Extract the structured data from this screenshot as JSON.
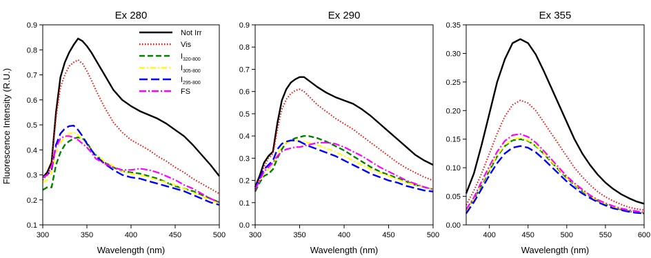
{
  "figure": {
    "ylabel": "Fluorescence Intensity (R.U.)",
    "legend": {
      "placement": "top-right of first panel",
      "entries": [
        {
          "main": "Not Irr",
          "sub": ""
        },
        {
          "main": "Vis",
          "sub": ""
        },
        {
          "main": "I",
          "sub": "320-800"
        },
        {
          "main": "I",
          "sub": "305-800"
        },
        {
          "main": "I",
          "sub": "295-800"
        },
        {
          "main": "FS",
          "sub": ""
        }
      ]
    },
    "series_styles": [
      {
        "color": "#000000",
        "dash": "",
        "width": 2.4
      },
      {
        "color": "#ff0000",
        "dash": "1.5 2.5",
        "width": 2
      },
      {
        "color": "#008000",
        "dash": "8 4",
        "width": 2.4
      },
      {
        "color": "#ffff00",
        "dash": "8 3 2 3",
        "width": 2
      },
      {
        "color": "#0000ff",
        "dash": "12 5",
        "width": 2.4
      },
      {
        "color": "#ff00ff",
        "dash": "10 3 2 3",
        "width": 2.2
      }
    ]
  },
  "chart_data": [
    {
      "type": "line",
      "title": "Ex 280",
      "xlabel": "Wavelength (nm)",
      "ylabel": "Fluorescence Intensity (R.U.)",
      "xlim": [
        300,
        500
      ],
      "ylim": [
        0.1,
        0.9
      ],
      "xticks": [
        "300",
        "350",
        "400",
        "450",
        "500"
      ],
      "yticks": [
        "0.1",
        "0.2",
        "0.3",
        "0.4",
        "0.5",
        "0.6",
        "0.7",
        "0.8",
        "0.9"
      ],
      "grid": false,
      "legend": "top-right",
      "x": [
        300,
        305,
        310,
        315,
        320,
        325,
        330,
        335,
        340,
        345,
        350,
        355,
        360,
        370,
        380,
        390,
        400,
        410,
        420,
        430,
        440,
        450,
        460,
        470,
        480,
        490,
        500
      ],
      "series": [
        {
          "name": "Not Irr",
          "values": [
            0.29,
            0.31,
            0.35,
            0.55,
            0.69,
            0.75,
            0.79,
            0.82,
            0.845,
            0.835,
            0.815,
            0.79,
            0.76,
            0.7,
            0.64,
            0.6,
            0.575,
            0.555,
            0.54,
            0.525,
            0.505,
            0.48,
            0.455,
            0.42,
            0.38,
            0.34,
            0.295
          ]
        },
        {
          "name": "Vis",
          "values": [
            0.28,
            0.3,
            0.34,
            0.53,
            0.65,
            0.7,
            0.735,
            0.75,
            0.76,
            0.745,
            0.715,
            0.68,
            0.64,
            0.57,
            0.51,
            0.47,
            0.44,
            0.42,
            0.4,
            0.375,
            0.355,
            0.33,
            0.31,
            0.285,
            0.265,
            0.245,
            0.225
          ]
        },
        {
          "name": "I320-800",
          "values": [
            0.24,
            0.25,
            0.25,
            0.34,
            0.39,
            0.42,
            0.435,
            0.445,
            0.45,
            0.445,
            0.43,
            0.4,
            0.38,
            0.35,
            0.33,
            0.315,
            0.31,
            0.305,
            0.295,
            0.285,
            0.27,
            0.255,
            0.245,
            0.235,
            0.22,
            0.205,
            0.19
          ]
        },
        {
          "name": "I305-800",
          "values": [
            0.27,
            0.28,
            0.31,
            0.39,
            0.43,
            0.45,
            0.465,
            0.47,
            0.46,
            0.44,
            0.42,
            0.4,
            0.38,
            0.355,
            0.335,
            0.315,
            0.305,
            0.3,
            0.29,
            0.28,
            0.27,
            0.26,
            0.245,
            0.23,
            0.215,
            0.2,
            0.185
          ]
        },
        {
          "name": "I295-800",
          "values": [
            0.29,
            0.3,
            0.32,
            0.42,
            0.465,
            0.485,
            0.495,
            0.497,
            0.48,
            0.455,
            0.425,
            0.4,
            0.375,
            0.345,
            0.32,
            0.3,
            0.29,
            0.285,
            0.275,
            0.265,
            0.255,
            0.245,
            0.235,
            0.22,
            0.205,
            0.19,
            0.18
          ]
        },
        {
          "name": "FS",
          "values": [
            0.29,
            0.3,
            0.33,
            0.41,
            0.445,
            0.455,
            0.455,
            0.45,
            0.44,
            0.425,
            0.41,
            0.39,
            0.365,
            0.345,
            0.33,
            0.32,
            0.32,
            0.325,
            0.32,
            0.31,
            0.295,
            0.28,
            0.26,
            0.245,
            0.225,
            0.205,
            0.19
          ]
        }
      ]
    },
    {
      "type": "line",
      "title": "Ex 290",
      "xlabel": "Wavelength (nm)",
      "ylabel": "",
      "xlim": [
        300,
        500
      ],
      "ylim": [
        0.0,
        0.9
      ],
      "xticks": [
        "300",
        "350",
        "400",
        "450",
        "500"
      ],
      "yticks": [
        "0.0",
        "0.1",
        "0.2",
        "0.3",
        "0.4",
        "0.5",
        "0.6",
        "0.7",
        "0.8",
        "0.9"
      ],
      "grid": false,
      "x": [
        300,
        305,
        310,
        315,
        320,
        325,
        330,
        335,
        340,
        345,
        350,
        355,
        360,
        370,
        380,
        390,
        400,
        410,
        420,
        430,
        440,
        450,
        460,
        470,
        480,
        490,
        500
      ],
      "series": [
        {
          "name": "Not Irr",
          "values": [
            0.17,
            0.22,
            0.28,
            0.31,
            0.33,
            0.46,
            0.56,
            0.61,
            0.64,
            0.655,
            0.665,
            0.665,
            0.65,
            0.62,
            0.595,
            0.575,
            0.56,
            0.545,
            0.52,
            0.49,
            0.455,
            0.42,
            0.385,
            0.35,
            0.315,
            0.29,
            0.27
          ]
        },
        {
          "name": "Vis",
          "values": [
            0.16,
            0.21,
            0.26,
            0.3,
            0.32,
            0.43,
            0.52,
            0.565,
            0.59,
            0.605,
            0.61,
            0.6,
            0.58,
            0.54,
            0.51,
            0.48,
            0.455,
            0.43,
            0.4,
            0.37,
            0.34,
            0.31,
            0.28,
            0.255,
            0.235,
            0.215,
            0.2
          ]
        },
        {
          "name": "I320-800",
          "values": [
            0.15,
            0.19,
            0.22,
            0.23,
            0.25,
            0.3,
            0.34,
            0.37,
            0.38,
            0.39,
            0.395,
            0.4,
            0.4,
            0.39,
            0.375,
            0.355,
            0.335,
            0.31,
            0.285,
            0.26,
            0.24,
            0.225,
            0.21,
            0.195,
            0.18,
            0.17,
            0.16
          ]
        },
        {
          "name": "I305-800",
          "values": [
            0.16,
            0.2,
            0.23,
            0.25,
            0.27,
            0.32,
            0.355,
            0.37,
            0.375,
            0.38,
            0.38,
            0.375,
            0.37,
            0.36,
            0.345,
            0.33,
            0.31,
            0.29,
            0.27,
            0.25,
            0.235,
            0.22,
            0.205,
            0.19,
            0.18,
            0.17,
            0.16
          ]
        },
        {
          "name": "I295-800",
          "values": [
            0.16,
            0.21,
            0.25,
            0.27,
            0.29,
            0.34,
            0.365,
            0.375,
            0.38,
            0.38,
            0.375,
            0.365,
            0.355,
            0.34,
            0.325,
            0.31,
            0.29,
            0.27,
            0.25,
            0.23,
            0.215,
            0.2,
            0.19,
            0.175,
            0.165,
            0.155,
            0.15
          ]
        },
        {
          "name": "FS",
          "values": [
            0.16,
            0.2,
            0.24,
            0.26,
            0.28,
            0.31,
            0.33,
            0.34,
            0.345,
            0.35,
            0.35,
            0.355,
            0.36,
            0.37,
            0.37,
            0.365,
            0.35,
            0.33,
            0.31,
            0.285,
            0.26,
            0.24,
            0.22,
            0.2,
            0.185,
            0.17,
            0.16
          ]
        }
      ]
    },
    {
      "type": "line",
      "title": "Ex 355",
      "xlabel": "Wavelength (nm)",
      "ylabel": "",
      "xlim": [
        370,
        600
      ],
      "ylim": [
        0.0,
        0.35
      ],
      "xticks": [
        "400",
        "450",
        "500",
        "550",
        "600"
      ],
      "yticks": [
        "0.00",
        "0.05",
        "0.10",
        "0.15",
        "0.20",
        "0.25",
        "0.30",
        "0.35"
      ],
      "grid": false,
      "x": [
        370,
        380,
        390,
        400,
        410,
        420,
        430,
        440,
        450,
        460,
        470,
        480,
        490,
        500,
        510,
        520,
        530,
        540,
        550,
        560,
        570,
        580,
        590,
        600
      ],
      "series": [
        {
          "name": "Not Irr",
          "values": [
            0.055,
            0.09,
            0.14,
            0.195,
            0.25,
            0.29,
            0.318,
            0.325,
            0.318,
            0.298,
            0.27,
            0.24,
            0.21,
            0.18,
            0.15,
            0.125,
            0.105,
            0.088,
            0.074,
            0.063,
            0.054,
            0.047,
            0.041,
            0.037
          ]
        },
        {
          "name": "Vis",
          "values": [
            0.035,
            0.06,
            0.09,
            0.125,
            0.16,
            0.19,
            0.21,
            0.218,
            0.213,
            0.2,
            0.18,
            0.16,
            0.14,
            0.12,
            0.1,
            0.084,
            0.07,
            0.058,
            0.049,
            0.042,
            0.036,
            0.031,
            0.028,
            0.026
          ]
        },
        {
          "name": "I320-800",
          "values": [
            0.025,
            0.045,
            0.07,
            0.095,
            0.12,
            0.138,
            0.148,
            0.15,
            0.147,
            0.138,
            0.125,
            0.11,
            0.096,
            0.082,
            0.07,
            0.059,
            0.05,
            0.042,
            0.036,
            0.031,
            0.027,
            0.024,
            0.022,
            0.02
          ]
        },
        {
          "name": "I305-800",
          "values": [
            0.025,
            0.045,
            0.072,
            0.098,
            0.122,
            0.14,
            0.15,
            0.152,
            0.148,
            0.139,
            0.126,
            0.111,
            0.097,
            0.083,
            0.071,
            0.06,
            0.051,
            0.043,
            0.037,
            0.032,
            0.028,
            0.025,
            0.023,
            0.021
          ]
        },
        {
          "name": "I295-800",
          "values": [
            0.02,
            0.04,
            0.063,
            0.087,
            0.108,
            0.125,
            0.135,
            0.138,
            0.135,
            0.127,
            0.115,
            0.102,
            0.089,
            0.076,
            0.065,
            0.055,
            0.047,
            0.04,
            0.034,
            0.029,
            0.026,
            0.023,
            0.021,
            0.02
          ]
        },
        {
          "name": "FS",
          "values": [
            0.027,
            0.048,
            0.076,
            0.103,
            0.128,
            0.147,
            0.157,
            0.159,
            0.154,
            0.144,
            0.13,
            0.115,
            0.1,
            0.085,
            0.073,
            0.062,
            0.052,
            0.044,
            0.038,
            0.033,
            0.029,
            0.026,
            0.024,
            0.022
          ]
        }
      ]
    }
  ]
}
